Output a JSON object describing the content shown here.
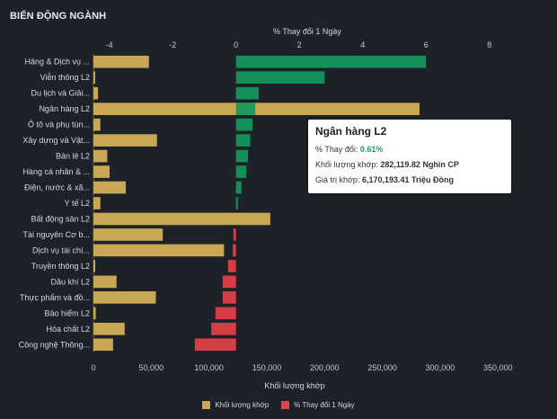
{
  "header": {
    "title": "BIẾN ĐỘNG NGÀNH"
  },
  "chart_data": {
    "type": "bar",
    "orientation": "horizontal",
    "categories": [
      "Hàng & Dịch vụ ...",
      "Viễn thông L2",
      "Du lịch và Giải...",
      "Ngân hàng L2",
      "Ô tô và phụ tùn...",
      "Xây dựng và Vật...",
      "Bán lẻ L2",
      "Hàng cá nhân & ...",
      "Điện, nước & xã...",
      "Y tế L2",
      "Bất động sản L2",
      "Tài nguyên Cơ b...",
      "Dịch vụ tài chí...",
      "Truyền thông L2",
      "Dầu khí L2",
      "Thực phẩm và đồ...",
      "Bảo hiểm L2",
      "Hóa chất L2",
      "Công nghệ Thông..."
    ],
    "series": [
      {
        "name": "Khối lượng khớp",
        "color": "#caa754",
        "axis": "bottom",
        "values": [
          48000,
          1000,
          4000,
          282120,
          6000,
          55000,
          12000,
          14000,
          28000,
          6000,
          153000,
          60000,
          113000,
          1500,
          20000,
          54000,
          2000,
          27000,
          17000
        ]
      },
      {
        "name": "% Thay đổi 1 Ngày",
        "color": "#119a5c",
        "negative_color": "#e5414a",
        "axis": "top",
        "values": [
          6.0,
          2.8,
          0.72,
          0.61,
          0.52,
          0.45,
          0.38,
          0.33,
          0.17,
          0.06,
          0.0,
          -0.08,
          -0.1,
          -0.25,
          -0.42,
          -0.42,
          -0.65,
          -0.78,
          -1.3
        ]
      }
    ],
    "top_axis": {
      "label": "% Thay đổi 1 Ngày",
      "ticks": [
        -4,
        -2,
        0,
        2,
        4,
        6,
        8
      ],
      "range": [
        -4.5,
        9.0
      ]
    },
    "bottom_axis": {
      "label": "Khối lượng khớp",
      "ticks": [
        "0",
        "50,000",
        "100,000",
        "150,000",
        "200,000",
        "250,000",
        "300,000",
        "350,000"
      ],
      "range": [
        0,
        370000
      ]
    },
    "legend": [
      "Khối lượng khớp",
      "% Thay đổi 1 Ngày"
    ],
    "tooltip": {
      "title": "Ngân hàng L2",
      "rows": [
        {
          "label": "% Thay đổi:",
          "value": "0.61%"
        },
        {
          "label": "Khối lượng khớp:",
          "value": "282,119.82 Nghìn CP"
        },
        {
          "label": "Giá trị khớp:",
          "value": "6,170,193.41 Triệu Đồng"
        }
      ]
    },
    "grid": false,
    "legend_position": "bottom"
  }
}
